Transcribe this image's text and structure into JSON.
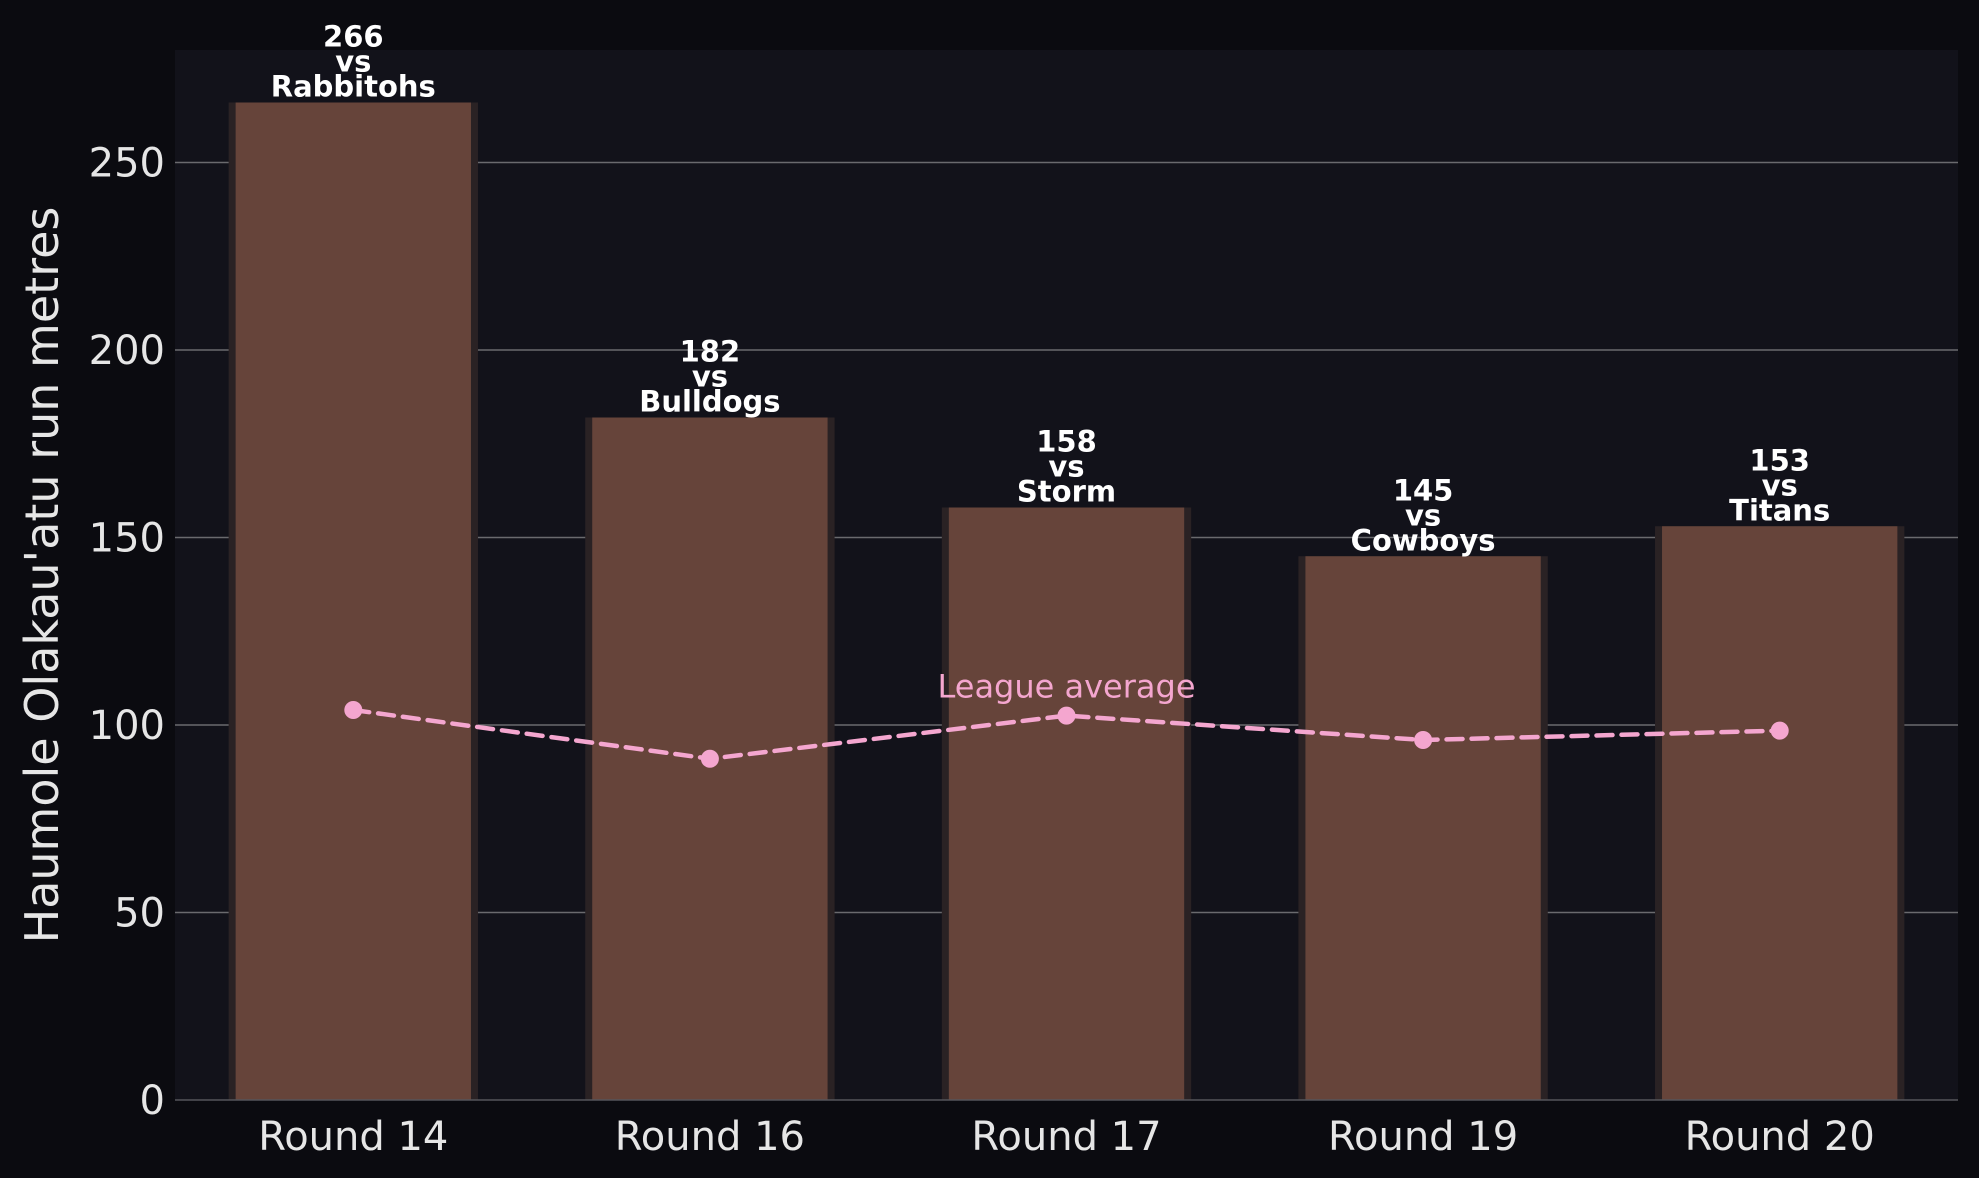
{
  "chart_data": {
    "type": "bar",
    "categories": [
      "Round 14",
      "Round 16",
      "Round 17",
      "Round 19",
      "Round 20"
    ],
    "values": [
      266,
      182,
      158,
      145,
      153
    ],
    "opponents": [
      "Rabbitohs",
      "Bulldogs",
      "Storm",
      "Cowboys",
      "Titans"
    ],
    "bar_label_connector": "vs",
    "ylabel": "Haumole Olakau'atu run metres",
    "xlabel": "",
    "title": "",
    "ylim": [
      0,
      280
    ],
    "yticks": [
      0,
      50,
      100,
      150,
      200,
      250
    ],
    "grid": "horizontal",
    "series": [
      {
        "name": "League average",
        "type": "line",
        "style": "dashed",
        "values": [
          104,
          91,
          102.5,
          96,
          98.5
        ]
      }
    ],
    "annotations": [
      {
        "text": "League average",
        "anchor_category": "Round 17"
      }
    ],
    "colors": {
      "background": "#0b0b10",
      "plot_background": "#12121a",
      "bar": "#66443a",
      "bar_shadow": "#2a2224",
      "average_line": "#f4a6cf",
      "gridline": "#6a6a6e",
      "text": "#e6e6e6",
      "bar_label": "#ffffff"
    }
  }
}
